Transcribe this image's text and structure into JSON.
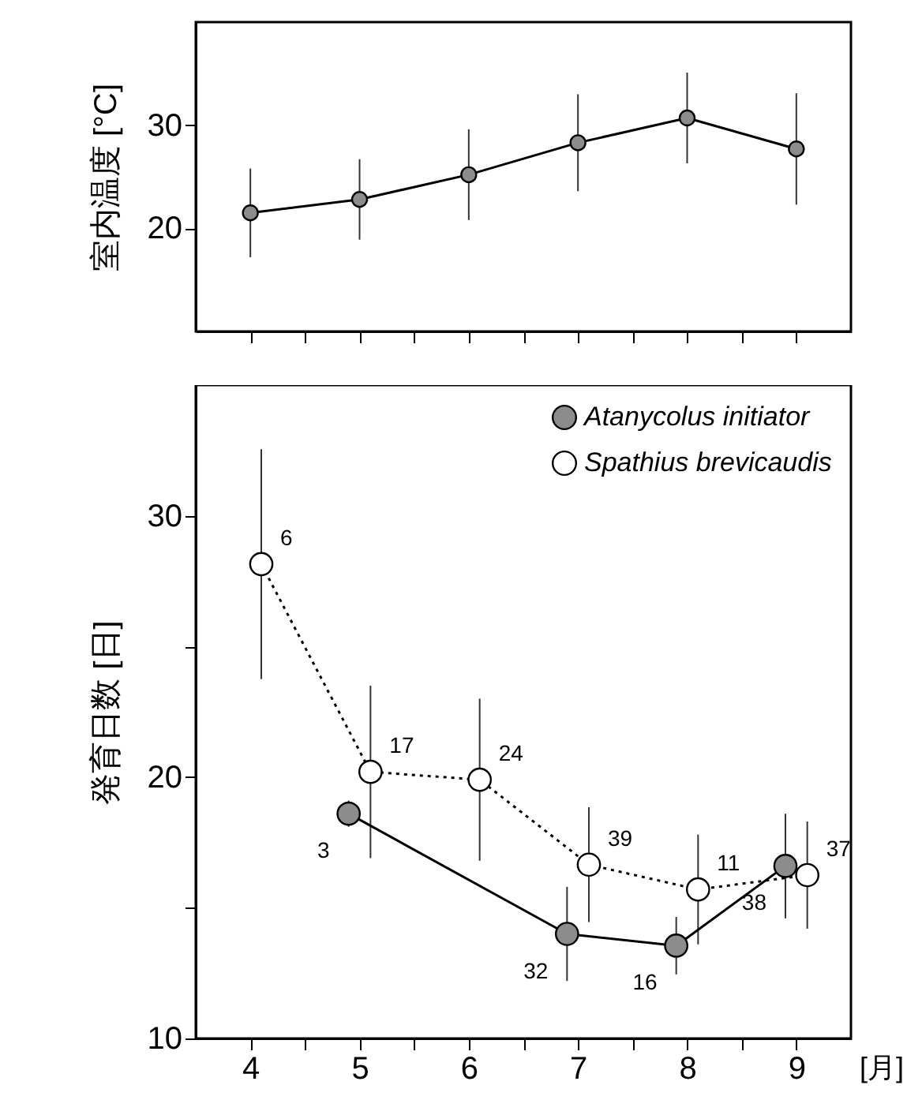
{
  "chart_data": [
    {
      "type": "line",
      "ylabel": "室内温度 [°C]",
      "x": [
        4,
        5,
        6,
        7,
        8,
        9
      ],
      "values": [
        21.5,
        22.8,
        25.2,
        28.3,
        30.7,
        27.7
      ],
      "errors": [
        4.3,
        3.9,
        4.4,
        4.7,
        4.4,
        5.4
      ],
      "color": "#8c8c8c",
      "marker": "circle",
      "line_style": "solid",
      "xlim": [
        3.5,
        9.5
      ],
      "xticks": [
        4,
        {
          "value": 4.5,
          "label": null
        },
        5,
        {
          "value": 5.5,
          "label": null
        },
        6,
        {
          "value": 6.5,
          "label": null
        },
        7,
        {
          "value": 7.5,
          "label": null
        },
        8,
        {
          "value": 8.5,
          "label": null
        },
        9
      ],
      "ylim": [
        10,
        40
      ],
      "yticks": [
        20,
        30
      ],
      "tick_labels": "y"
    },
    {
      "type": "line",
      "ylabel": "発育日数 [日]",
      "xlabel": "[月]",
      "series": [
        {
          "name": "Atanycolus initiator",
          "color": "#8c8c8c",
          "x": [
            4.9,
            6.9,
            7.9,
            8.9
          ],
          "values": [
            18.6,
            14.0,
            13.55,
            16.6
          ],
          "errors": [
            0.5,
            1.8,
            1.1,
            2.0
          ],
          "line_style": "solid"
        },
        {
          "name": "Spathius brevicaudis",
          "color": "#ffffff",
          "x": [
            4.1,
            5.1,
            6.1,
            7.1,
            8.1,
            9.1
          ],
          "values": [
            28.15,
            20.2,
            19.9,
            16.65,
            15.7,
            16.25
          ],
          "errors": [
            4.4,
            3.3,
            3.1,
            2.2,
            2.1,
            2.05
          ],
          "line_style": "dotted"
        }
      ],
      "annotations": [
        {
          "text": "3",
          "x": 4.9,
          "y": 18.6
        },
        {
          "text": "32",
          "x": 6.9,
          "y": 14.0
        },
        {
          "text": "16",
          "x": 7.9,
          "y": 13.55
        },
        {
          "text": "38",
          "x": 8.9,
          "y": 16.6
        },
        {
          "text": "6",
          "x": 4.1,
          "y": 28.15
        },
        {
          "text": "17",
          "x": 5.1,
          "y": 20.2
        },
        {
          "text": "24",
          "x": 6.1,
          "y": 19.9
        },
        {
          "text": "39",
          "x": 7.1,
          "y": 16.65
        },
        {
          "text": "11",
          "x": 8.1,
          "y": 15.7
        },
        {
          "text": "37",
          "x": 9.1,
          "y": 16.25
        }
      ],
      "marker": "circle",
      "legend": "top right",
      "xlim": [
        3.5,
        9.5
      ],
      "xticks": [
        4,
        {
          "value": 4.5,
          "label": null
        },
        5,
        {
          "value": 5.5,
          "label": null
        },
        6,
        {
          "value": 6.5,
          "label": null
        },
        7,
        {
          "value": 7.5,
          "label": null
        },
        8,
        {
          "value": 8.5,
          "label": null
        },
        9
      ],
      "ylim": [
        10,
        35
      ],
      "yticks": [
        10,
        {
          "value": 15,
          "label": null
        },
        20,
        {
          "value": 25,
          "label": null
        },
        30
      ]
    }
  ]
}
